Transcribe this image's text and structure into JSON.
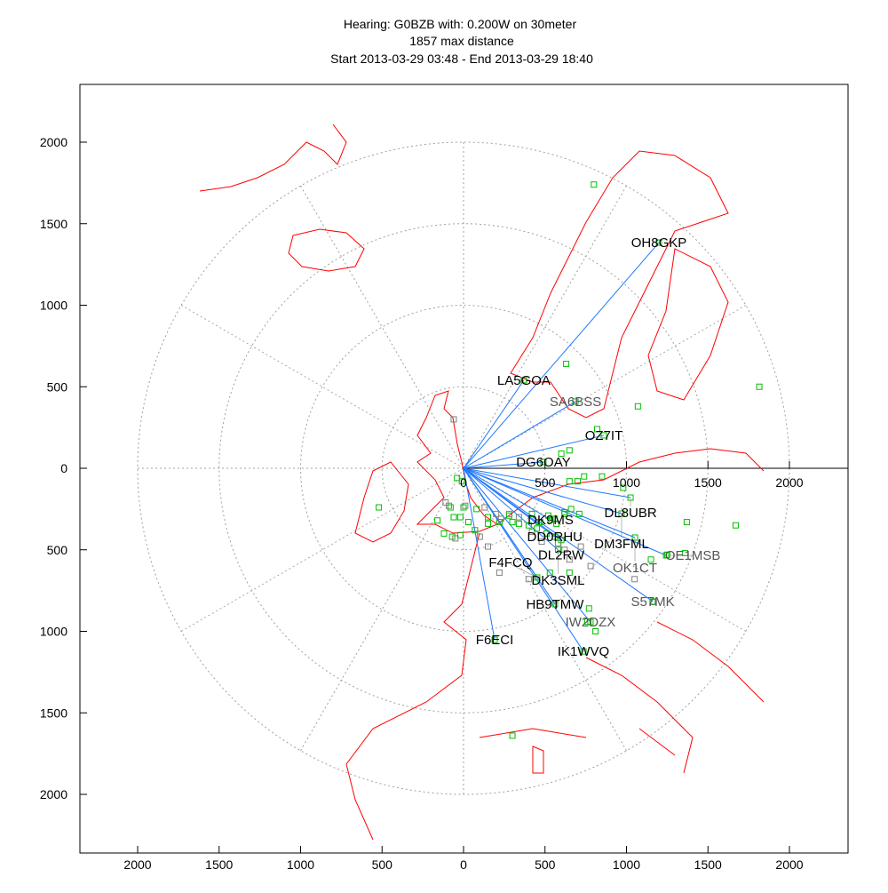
{
  "chart_data": {
    "type": "scatter",
    "subtype": "polar-distance-map",
    "title": [
      "Hearing: G0BZB with: 0.200W on 30meter",
      "1857 max distance",
      "Start 2013-03-29 03:48 - End 2013-03-29 18:40"
    ],
    "xlim": [
      -2350,
      2350
    ],
    "ylim": [
      -2350,
      2350
    ],
    "x_ticks": [
      2000,
      1500,
      1000,
      500,
      0,
      500,
      1000,
      1500,
      2000
    ],
    "y_ticks": [
      2000,
      1500,
      1000,
      500,
      0,
      500,
      1000,
      1500,
      2000
    ],
    "inner_axis_labels": [
      "0",
      "500",
      "1000",
      "1500",
      "2000"
    ],
    "range_rings": [
      500,
      1000,
      1500,
      2000
    ],
    "grid": true,
    "colors": {
      "link": "#1e78ff",
      "coast": "#ff0000",
      "heard": "#00c000",
      "other": "#808080",
      "ring": "#a0a0a0"
    },
    "stations": [
      {
        "call": "OH8GKP",
        "x": 1199,
        "y": 1384,
        "dark": true
      },
      {
        "call": "LA5GOA",
        "x": 370,
        "y": 540,
        "dark": true
      },
      {
        "call": "SA6BSS",
        "x": 687,
        "y": 409,
        "dark": false
      },
      {
        "call": "OZ7IT",
        "x": 861,
        "y": 202,
        "dark": true
      },
      {
        "call": "DG6OAY",
        "x": 490,
        "y": 38,
        "dark": true
      },
      {
        "call": "DL8UBR",
        "x": 1025,
        "y": -180,
        "dark": true
      },
      {
        "call": "DM3FML",
        "x": 970,
        "y": -278,
        "dark": true
      },
      {
        "call": "OK1CT",
        "x": 1052,
        "y": -425,
        "dark": false
      },
      {
        "call": "OE1MSB",
        "x": 1243,
        "y": -534,
        "dark": false
      },
      {
        "call": "DK9MS",
        "x": 534,
        "y": -316,
        "dark": true
      },
      {
        "call": "DD0RHU",
        "x": 560,
        "y": -420,
        "dark": true
      },
      {
        "call": "DL2RW",
        "x": 600,
        "y": -440,
        "dark": true
      },
      {
        "call": "DK3SML",
        "x": 580,
        "y": -500,
        "dark": true
      },
      {
        "call": "F4FCQ",
        "x": 452,
        "y": -670,
        "dark": true
      },
      {
        "call": "HB9TMW",
        "x": 561,
        "y": -834,
        "dark": true
      },
      {
        "call": "IW2DZX",
        "x": 779,
        "y": -943,
        "dark": false
      },
      {
        "call": "IK1WVQ",
        "x": 736,
        "y": -1123,
        "dark": true
      },
      {
        "call": "F6ECI",
        "x": 191,
        "y": -1052,
        "dark": true
      },
      {
        "call": "S57MK",
        "x": 1161,
        "y": -817,
        "dark": false
      }
    ],
    "heard_points": [
      [
        1815,
        500
      ],
      [
        1670,
        -350
      ],
      [
        1370,
        -330
      ],
      [
        1360,
        -520
      ],
      [
        1250,
        -530
      ],
      [
        1150,
        -560
      ],
      [
        980,
        -120
      ],
      [
        850,
        -50
      ],
      [
        740,
        -50
      ],
      [
        700,
        -80
      ],
      [
        650,
        -80
      ],
      [
        600,
        90
      ],
      [
        650,
        110
      ],
      [
        630,
        640
      ],
      [
        1070,
        380
      ],
      [
        800,
        1740
      ],
      [
        820,
        240
      ],
      [
        560,
        -310
      ],
      [
        620,
        -270
      ],
      [
        520,
        -290
      ],
      [
        570,
        -340
      ],
      [
        510,
        -400
      ],
      [
        470,
        -330
      ],
      [
        450,
        -370
      ],
      [
        400,
        -350
      ],
      [
        340,
        -340
      ],
      [
        300,
        -330
      ],
      [
        220,
        -330
      ],
      [
        150,
        -300
      ],
      [
        80,
        -250
      ],
      [
        30,
        -330
      ],
      [
        -20,
        -300
      ],
      [
        -60,
        -300
      ],
      [
        -160,
        -320
      ],
      [
        -120,
        -400
      ],
      [
        -70,
        -420
      ],
      [
        -20,
        -410
      ],
      [
        70,
        -380
      ],
      [
        150,
        -340
      ],
      [
        0,
        -240
      ],
      [
        -10,
        -80
      ],
      [
        -40,
        -60
      ],
      [
        -520,
        -240
      ],
      [
        -80,
        -240
      ],
      [
        650,
        -640
      ],
      [
        770,
        -860
      ],
      [
        760,
        -940
      ],
      [
        620,
        -280
      ],
      [
        660,
        -250
      ],
      [
        710,
        -280
      ],
      [
        420,
        -280
      ],
      [
        300,
        -1640
      ],
      [
        810,
        -1000
      ],
      [
        530,
        -640
      ],
      [
        460,
        -330
      ],
      [
        280,
        -290
      ]
    ],
    "other_points": [
      [
        -60,
        300
      ],
      [
        -110,
        -210
      ],
      [
        -90,
        -230
      ],
      [
        10,
        -230
      ],
      [
        130,
        -240
      ],
      [
        200,
        -280
      ],
      [
        280,
        -280
      ],
      [
        340,
        -300
      ],
      [
        420,
        -390
      ],
      [
        480,
        -450
      ],
      [
        580,
        -460
      ],
      [
        620,
        -500
      ],
      [
        650,
        -560
      ],
      [
        720,
        -480
      ],
      [
        780,
        -600
      ],
      [
        1050,
        -680
      ],
      [
        1160,
        -820
      ],
      [
        400,
        -680
      ],
      [
        220,
        -640
      ],
      [
        150,
        -480
      ],
      [
        100,
        -420
      ],
      [
        -50,
        -430
      ],
      [
        230,
        -310
      ]
    ]
  }
}
